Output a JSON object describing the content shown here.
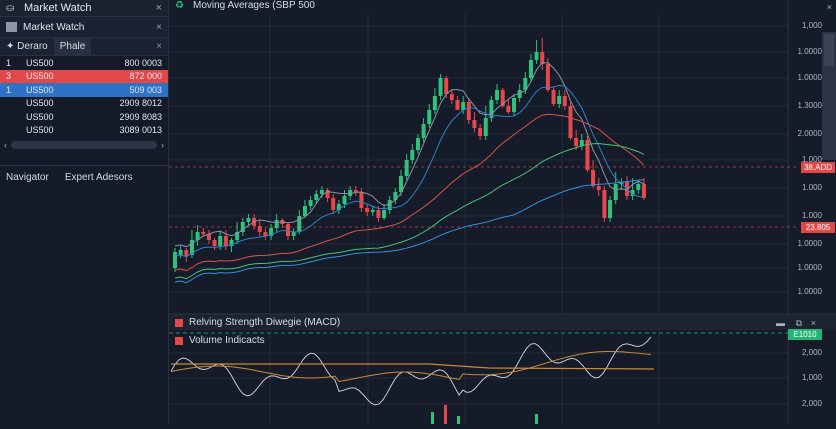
{
  "left_panel": {
    "window_title": "Market Watch",
    "sub_title": "Market Watch",
    "tabs": [
      {
        "label": "Deraro",
        "active": false
      },
      {
        "label": "Phale",
        "active": true
      }
    ],
    "rows": [
      {
        "num": "1",
        "symbol": "US500",
        "value": "800 0003",
        "highlight": "none"
      },
      {
        "num": "3",
        "symbol": "US500",
        "value": "872 000",
        "highlight": "red"
      },
      {
        "num": "1",
        "symbol": "US500",
        "value": "509 003",
        "highlight": "blue"
      },
      {
        "num": "",
        "symbol": "US500",
        "value": "2909 8012",
        "highlight": "none"
      },
      {
        "num": "",
        "symbol": "US500",
        "value": "2909 8083",
        "highlight": "none"
      },
      {
        "num": "",
        "symbol": "US500",
        "value": "3089 0013",
        "highlight": "none"
      }
    ],
    "bottom_tabs": [
      {
        "label": "Navigator"
      },
      {
        "label": "Expert Adesors"
      }
    ],
    "icons": {
      "close": "×",
      "scroll_left": "‹",
      "scroll_right": "›"
    }
  },
  "main_chart": {
    "title": "Moving Averages (SBP 500",
    "title_icon": "green-recycle-icon",
    "axis_labels": [
      "1,000",
      "1.0000",
      "1.0000",
      "1.3000",
      "2.0000",
      "1.000",
      "1.000",
      "1.000",
      "1.0000",
      "1.0000",
      "1.0000"
    ],
    "price_tags": [
      {
        "label": "38.ADD",
        "color": "#e24848"
      },
      {
        "label": "23.805",
        "color": "#e24848"
      }
    ],
    "colors": {
      "up": "#2ec27e",
      "down": "#e8484c",
      "grid": "#232b3a",
      "bg": "#151b28"
    }
  },
  "sub_panel": {
    "title1": "Relving Strength Diwegie (MACD)",
    "title2": "Volume Indicacts",
    "axis_labels": [
      "2,000",
      "1,000",
      "2,000"
    ],
    "price_tag": {
      "label": "E1010",
      "color": "#22b573"
    },
    "buttons": {
      "minimize": "▬",
      "restore": "⧉",
      "close": "×"
    }
  },
  "chart_data": {
    "type": "candlestick",
    "title": "Moving Averages (SBP 500",
    "candles": [
      [
        268,
        252,
        272,
        248
      ],
      [
        255,
        250,
        258,
        246
      ],
      [
        250,
        256,
        262,
        248
      ],
      [
        255,
        240,
        258,
        230
      ],
      [
        240,
        232,
        246,
        225
      ],
      [
        232,
        232,
        236,
        228
      ],
      [
        234,
        240,
        244,
        230
      ],
      [
        240,
        246,
        250,
        238
      ],
      [
        246,
        236,
        250,
        232
      ],
      [
        236,
        246,
        250,
        230
      ],
      [
        246,
        240,
        252,
        238
      ],
      [
        240,
        232,
        244,
        222
      ],
      [
        232,
        222,
        236,
        218
      ],
      [
        222,
        218,
        226,
        214
      ],
      [
        218,
        226,
        230,
        214
      ],
      [
        226,
        232,
        236,
        220
      ],
      [
        232,
        236,
        240,
        228
      ],
      [
        236,
        228,
        240,
        224
      ],
      [
        228,
        220,
        232,
        214
      ],
      [
        220,
        224,
        228,
        218
      ],
      [
        224,
        236,
        240,
        222
      ],
      [
        236,
        232,
        240,
        228
      ],
      [
        232,
        216,
        234,
        210
      ],
      [
        216,
        206,
        218,
        200
      ],
      [
        206,
        200,
        210,
        196
      ],
      [
        200,
        194,
        204,
        190
      ],
      [
        194,
        190,
        198,
        186
      ],
      [
        190,
        198,
        202,
        188
      ],
      [
        198,
        210,
        214,
        194
      ],
      [
        210,
        204,
        214,
        200
      ],
      [
        204,
        196,
        208,
        190
      ],
      [
        196,
        190,
        200,
        186
      ],
      [
        190,
        192,
        196,
        186
      ],
      [
        192,
        208,
        212,
        188
      ],
      [
        208,
        212,
        216,
        204
      ],
      [
        212,
        210,
        216,
        206
      ],
      [
        210,
        218,
        222,
        206
      ],
      [
        218,
        210,
        220,
        204
      ],
      [
        210,
        200,
        214,
        196
      ],
      [
        200,
        192,
        204,
        188
      ],
      [
        192,
        176,
        196,
        170
      ],
      [
        176,
        160,
        180,
        154
      ],
      [
        160,
        150,
        164,
        144
      ],
      [
        150,
        138,
        154,
        134
      ],
      [
        138,
        124,
        142,
        118
      ],
      [
        124,
        110,
        128,
        104
      ],
      [
        110,
        96,
        114,
        88
      ],
      [
        96,
        78,
        100,
        74
      ],
      [
        78,
        94,
        98,
        76
      ],
      [
        94,
        100,
        104,
        90
      ],
      [
        100,
        110,
        104,
        96
      ],
      [
        110,
        102,
        114,
        96
      ],
      [
        102,
        120,
        124,
        98
      ],
      [
        120,
        128,
        132,
        112
      ],
      [
        128,
        136,
        140,
        124
      ],
      [
        136,
        118,
        140,
        106
      ],
      [
        118,
        100,
        122,
        96
      ],
      [
        100,
        90,
        104,
        84
      ],
      [
        90,
        106,
        108,
        88
      ],
      [
        106,
        112,
        114,
        100
      ],
      [
        112,
        98,
        116,
        94
      ],
      [
        98,
        90,
        102,
        84
      ],
      [
        90,
        78,
        94,
        72
      ],
      [
        78,
        60,
        82,
        54
      ],
      [
        60,
        52,
        64,
        40
      ],
      [
        52,
        64,
        70,
        38
      ],
      [
        64,
        90,
        92,
        58
      ],
      [
        90,
        104,
        106,
        86
      ],
      [
        104,
        96,
        108,
        90
      ],
      [
        96,
        106,
        110,
        90
      ],
      [
        106,
        138,
        140,
        102
      ],
      [
        138,
        146,
        150,
        130
      ],
      [
        146,
        140,
        150,
        134
      ],
      [
        140,
        170,
        172,
        136
      ],
      [
        170,
        186,
        188,
        160
      ],
      [
        186,
        190,
        196,
        178
      ],
      [
        190,
        218,
        222,
        186
      ],
      [
        218,
        200,
        222,
        196
      ],
      [
        200,
        184,
        204,
        172
      ],
      [
        184,
        182,
        190,
        178
      ],
      [
        182,
        196,
        200,
        176
      ],
      [
        196,
        190,
        200,
        178
      ],
      [
        190,
        184,
        194,
        180
      ],
      [
        184,
        198,
        200,
        178
      ]
    ],
    "moving_averages": [
      {
        "name": "MA-gray",
        "color": "#8b94a3"
      },
      {
        "name": "MA-blue",
        "color": "#2f7fc9"
      },
      {
        "name": "MA-red",
        "color": "#d8534a"
      },
      {
        "name": "MA-green",
        "color": "#49c27a"
      },
      {
        "name": "MA-lightblue",
        "color": "#3b8edb"
      }
    ]
  }
}
